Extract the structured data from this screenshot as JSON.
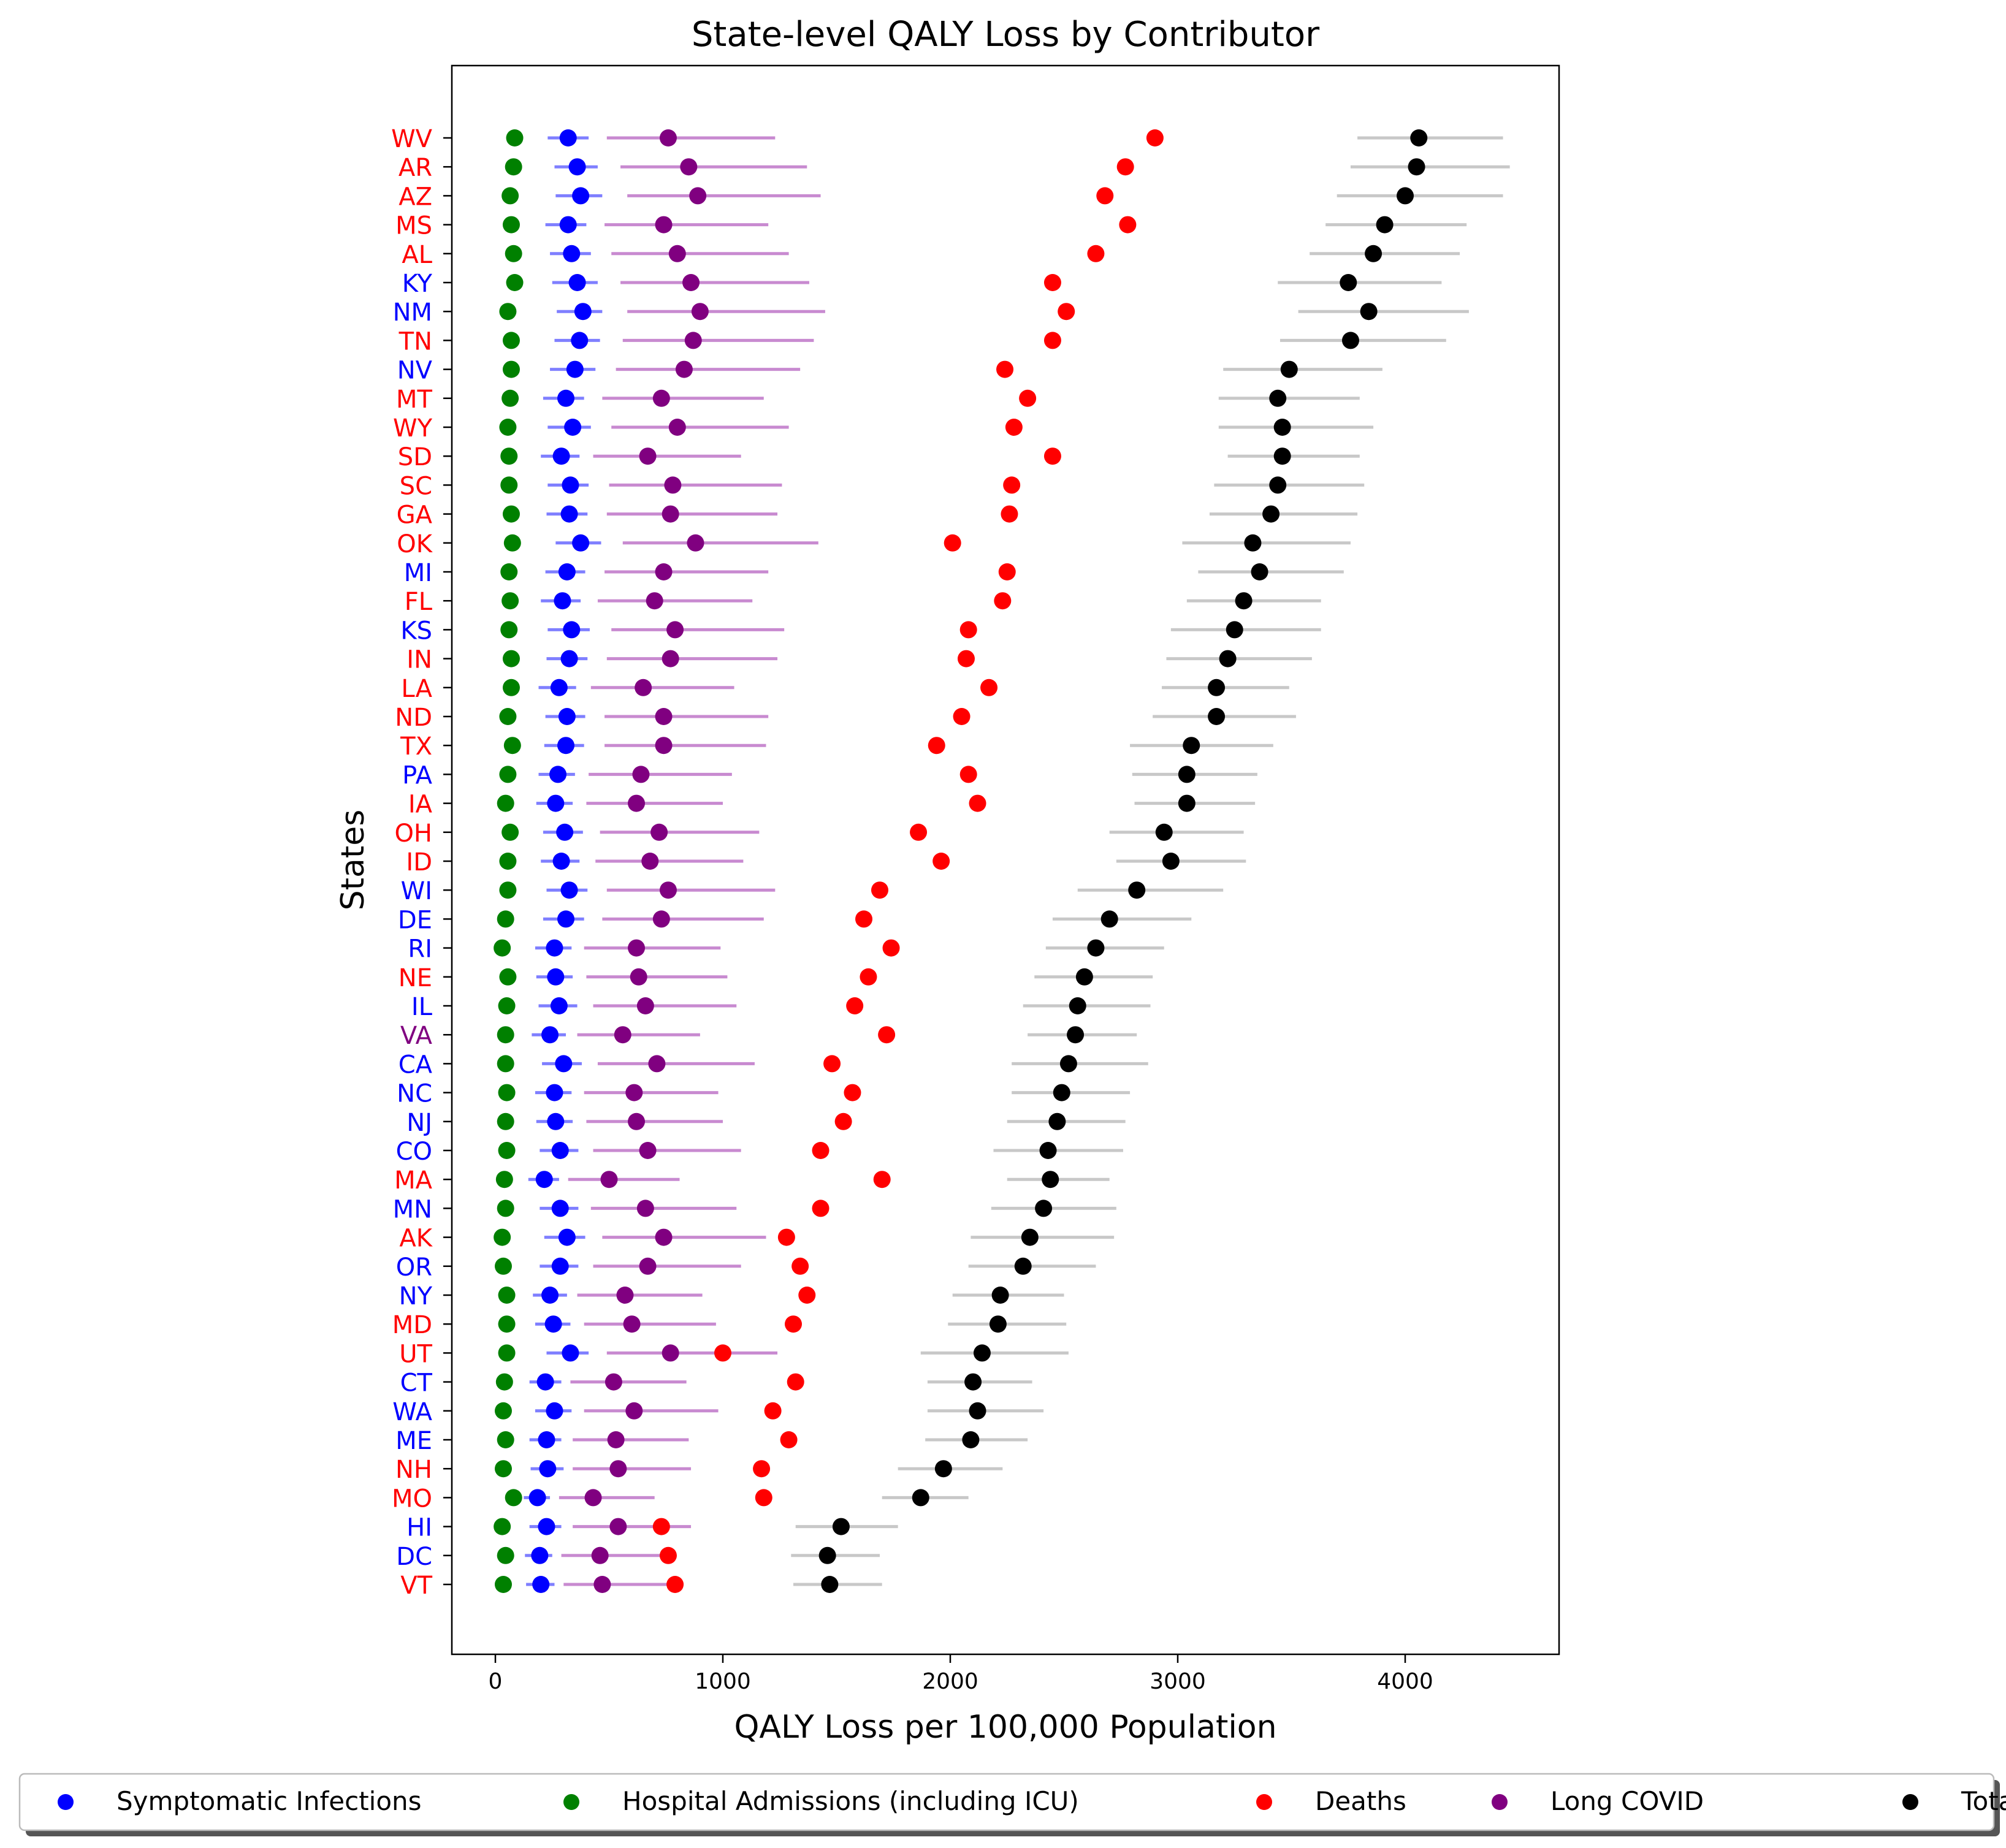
{
  "chart_data": {
    "type": "scatter",
    "title": "State-level QALY Loss by Contributor",
    "xlabel": "QALY Loss per 100,000 Population",
    "ylabel": "States",
    "xlim": [
      -200,
      4700
    ],
    "xticks": [
      0,
      1000,
      2000,
      3000,
      4000
    ],
    "legend_position": "bottom",
    "grid": false,
    "series": [
      {
        "name": "Symptomatic Infections",
        "color": "#0000ff",
        "err_color": "#7f7fff"
      },
      {
        "name": "Hospital Admissions (including ICU)",
        "color": "#008000",
        "err_color": null
      },
      {
        "name": "Deaths",
        "color": "#ff0000",
        "err_color": null
      },
      {
        "name": "Long COVID",
        "color": "#800080",
        "err_color": "#c88ad0"
      },
      {
        "name": "Total",
        "color": "#000000",
        "err_color": "#c8c8c8"
      }
    ],
    "party_colors": {
      "R": "#ff0000",
      "D": "#0000ff",
      "S": "#800080"
    },
    "states": [
      {
        "label": "WV",
        "party": "R",
        "sym": [
          320,
          230,
          410
        ],
        "hosp": 85,
        "deaths": 2900,
        "long": [
          760,
          490,
          1230
        ],
        "total": [
          4060,
          3790,
          4430
        ]
      },
      {
        "label": "AR",
        "party": "R",
        "sym": [
          360,
          260,
          450
        ],
        "hosp": 80,
        "deaths": 2770,
        "long": [
          850,
          550,
          1370
        ],
        "total": [
          4050,
          3760,
          4460
        ]
      },
      {
        "label": "AZ",
        "party": "R",
        "sym": [
          375,
          265,
          470
        ],
        "hosp": 65,
        "deaths": 2680,
        "long": [
          890,
          580,
          1430
        ],
        "total": [
          4000,
          3700,
          4430
        ]
      },
      {
        "label": "MS",
        "party": "R",
        "sym": [
          320,
          220,
          400
        ],
        "hosp": 70,
        "deaths": 2780,
        "long": [
          740,
          480,
          1200
        ],
        "total": [
          3910,
          3650,
          4270
        ]
      },
      {
        "label": "AL",
        "party": "R",
        "sym": [
          335,
          240,
          420
        ],
        "hosp": 80,
        "deaths": 2640,
        "long": [
          800,
          510,
          1290
        ],
        "total": [
          3860,
          3580,
          4240
        ]
      },
      {
        "label": "KY",
        "party": "D",
        "sym": [
          360,
          250,
          450
        ],
        "hosp": 85,
        "deaths": 2450,
        "long": [
          860,
          550,
          1380
        ],
        "total": [
          3750,
          3440,
          4160
        ]
      },
      {
        "label": "NM",
        "party": "D",
        "sym": [
          385,
          270,
          470
        ],
        "hosp": 55,
        "deaths": 2510,
        "long": [
          900,
          580,
          1450
        ],
        "total": [
          3840,
          3530,
          4280
        ]
      },
      {
        "label": "TN",
        "party": "R",
        "sym": [
          370,
          260,
          460
        ],
        "hosp": 70,
        "deaths": 2450,
        "long": [
          870,
          560,
          1400
        ],
        "total": [
          3760,
          3450,
          4180
        ]
      },
      {
        "label": "NV",
        "party": "D",
        "sym": [
          350,
          240,
          440
        ],
        "hosp": 70,
        "deaths": 2240,
        "long": [
          830,
          530,
          1340
        ],
        "total": [
          3490,
          3200,
          3900
        ]
      },
      {
        "label": "MT",
        "party": "R",
        "sym": [
          310,
          210,
          390
        ],
        "hosp": 65,
        "deaths": 2340,
        "long": [
          730,
          470,
          1180
        ],
        "total": [
          3440,
          3180,
          3800
        ]
      },
      {
        "label": "WY",
        "party": "R",
        "sym": [
          340,
          230,
          420
        ],
        "hosp": 55,
        "deaths": 2280,
        "long": [
          800,
          510,
          1290
        ],
        "total": [
          3460,
          3180,
          3860
        ]
      },
      {
        "label": "SD",
        "party": "R",
        "sym": [
          290,
          200,
          370
        ],
        "hosp": 60,
        "deaths": 2450,
        "long": [
          670,
          430,
          1080
        ],
        "total": [
          3460,
          3220,
          3800
        ]
      },
      {
        "label": "SC",
        "party": "R",
        "sym": [
          330,
          230,
          410
        ],
        "hosp": 60,
        "deaths": 2270,
        "long": [
          780,
          500,
          1260
        ],
        "total": [
          3440,
          3160,
          3820
        ]
      },
      {
        "label": "GA",
        "party": "R",
        "sym": [
          325,
          225,
          405
        ],
        "hosp": 70,
        "deaths": 2260,
        "long": [
          770,
          490,
          1240
        ],
        "total": [
          3410,
          3140,
          3790
        ]
      },
      {
        "label": "OK",
        "party": "R",
        "sym": [
          375,
          265,
          465
        ],
        "hosp": 75,
        "deaths": 2010,
        "long": [
          880,
          560,
          1420
        ],
        "total": [
          3330,
          3020,
          3760
        ]
      },
      {
        "label": "MI",
        "party": "D",
        "sym": [
          315,
          220,
          395
        ],
        "hosp": 60,
        "deaths": 2250,
        "long": [
          740,
          480,
          1200
        ],
        "total": [
          3360,
          3090,
          3730
        ]
      },
      {
        "label": "FL",
        "party": "R",
        "sym": [
          295,
          200,
          375
        ],
        "hosp": 65,
        "deaths": 2230,
        "long": [
          700,
          450,
          1130
        ],
        "total": [
          3290,
          3040,
          3630
        ]
      },
      {
        "label": "KS",
        "party": "D",
        "sym": [
          335,
          230,
          415
        ],
        "hosp": 60,
        "deaths": 2080,
        "long": [
          790,
          510,
          1270
        ],
        "total": [
          3250,
          2970,
          3630
        ]
      },
      {
        "label": "IN",
        "party": "R",
        "sym": [
          325,
          225,
          405
        ],
        "hosp": 70,
        "deaths": 2070,
        "long": [
          770,
          490,
          1240
        ],
        "total": [
          3220,
          2950,
          3590
        ]
      },
      {
        "label": "LA",
        "party": "R",
        "sym": [
          280,
          190,
          355
        ],
        "hosp": 70,
        "deaths": 2170,
        "long": [
          650,
          420,
          1050
        ],
        "total": [
          3170,
          2930,
          3490
        ]
      },
      {
        "label": "ND",
        "party": "R",
        "sym": [
          315,
          220,
          395
        ],
        "hosp": 55,
        "deaths": 2050,
        "long": [
          740,
          480,
          1200
        ],
        "total": [
          3170,
          2890,
          3520
        ]
      },
      {
        "label": "TX",
        "party": "R",
        "sym": [
          310,
          215,
          390
        ],
        "hosp": 75,
        "deaths": 1940,
        "long": [
          740,
          480,
          1190
        ],
        "total": [
          3060,
          2790,
          3420
        ]
      },
      {
        "label": "PA",
        "party": "D",
        "sym": [
          275,
          190,
          350
        ],
        "hosp": 55,
        "deaths": 2080,
        "long": [
          640,
          410,
          1040
        ],
        "total": [
          3040,
          2800,
          3350
        ]
      },
      {
        "label": "IA",
        "party": "R",
        "sym": [
          265,
          180,
          340
        ],
        "hosp": 45,
        "deaths": 2120,
        "long": [
          620,
          400,
          1000
        ],
        "total": [
          3040,
          2810,
          3340
        ]
      },
      {
        "label": "OH",
        "party": "R",
        "sym": [
          305,
          210,
          385
        ],
        "hosp": 65,
        "deaths": 1860,
        "long": [
          720,
          460,
          1160
        ],
        "total": [
          2940,
          2700,
          3290
        ]
      },
      {
        "label": "ID",
        "party": "R",
        "sym": [
          290,
          200,
          370
        ],
        "hosp": 55,
        "deaths": 1960,
        "long": [
          680,
          440,
          1090
        ],
        "total": [
          2970,
          2730,
          3300
        ]
      },
      {
        "label": "WI",
        "party": "D",
        "sym": [
          325,
          225,
          405
        ],
        "hosp": 55,
        "deaths": 1690,
        "long": [
          760,
          490,
          1230
        ],
        "total": [
          2820,
          2560,
          3200
        ]
      },
      {
        "label": "DE",
        "party": "D",
        "sym": [
          310,
          210,
          390
        ],
        "hosp": 45,
        "deaths": 1620,
        "long": [
          730,
          470,
          1180
        ],
        "total": [
          2700,
          2450,
          3060
        ]
      },
      {
        "label": "RI",
        "party": "D",
        "sym": [
          260,
          175,
          335
        ],
        "hosp": 30,
        "deaths": 1740,
        "long": [
          620,
          390,
          990
        ],
        "total": [
          2640,
          2420,
          2940
        ]
      },
      {
        "label": "NE",
        "party": "R",
        "sym": [
          265,
          180,
          340
        ],
        "hosp": 55,
        "deaths": 1640,
        "long": [
          630,
          400,
          1020
        ],
        "total": [
          2590,
          2370,
          2890
        ]
      },
      {
        "label": "IL",
        "party": "D",
        "sym": [
          280,
          190,
          360
        ],
        "hosp": 50,
        "deaths": 1580,
        "long": [
          660,
          430,
          1060
        ],
        "total": [
          2560,
          2320,
          2880
        ]
      },
      {
        "label": "VA",
        "party": "S",
        "sym": [
          240,
          160,
          310
        ],
        "hosp": 45,
        "deaths": 1720,
        "long": [
          560,
          360,
          900
        ],
        "total": [
          2550,
          2340,
          2820
        ]
      },
      {
        "label": "CA",
        "party": "D",
        "sym": [
          300,
          205,
          380
        ],
        "hosp": 45,
        "deaths": 1480,
        "long": [
          710,
          450,
          1140
        ],
        "total": [
          2520,
          2270,
          2870
        ]
      },
      {
        "label": "NC",
        "party": "D",
        "sym": [
          260,
          175,
          335
        ],
        "hosp": 50,
        "deaths": 1570,
        "long": [
          610,
          390,
          980
        ],
        "total": [
          2490,
          2270,
          2790
        ]
      },
      {
        "label": "NJ",
        "party": "D",
        "sym": [
          265,
          180,
          340
        ],
        "hosp": 45,
        "deaths": 1530,
        "long": [
          620,
          400,
          1000
        ],
        "total": [
          2470,
          2250,
          2770
        ]
      },
      {
        "label": "CO",
        "party": "D",
        "sym": [
          285,
          195,
          365
        ],
        "hosp": 50,
        "deaths": 1430,
        "long": [
          670,
          430,
          1080
        ],
        "total": [
          2430,
          2190,
          2760
        ]
      },
      {
        "label": "MA",
        "party": "R",
        "sym": [
          215,
          145,
          280
        ],
        "hosp": 40,
        "deaths": 1700,
        "long": [
          500,
          320,
          810
        ],
        "total": [
          2440,
          2250,
          2700
        ]
      },
      {
        "label": "MN",
        "party": "D",
        "sym": [
          285,
          195,
          365
        ],
        "hosp": 45,
        "deaths": 1430,
        "long": [
          660,
          420,
          1060
        ],
        "total": [
          2410,
          2180,
          2730
        ]
      },
      {
        "label": "AK",
        "party": "R",
        "sym": [
          315,
          215,
          395
        ],
        "hosp": 30,
        "deaths": 1280,
        "long": [
          740,
          470,
          1190
        ],
        "total": [
          2350,
          2090,
          2720
        ]
      },
      {
        "label": "OR",
        "party": "D",
        "sym": [
          285,
          195,
          365
        ],
        "hosp": 35,
        "deaths": 1340,
        "long": [
          670,
          430,
          1080
        ],
        "total": [
          2320,
          2080,
          2640
        ]
      },
      {
        "label": "NY",
        "party": "D",
        "sym": [
          240,
          165,
          315
        ],
        "hosp": 50,
        "deaths": 1370,
        "long": [
          570,
          360,
          910
        ],
        "total": [
          2220,
          2010,
          2500
        ]
      },
      {
        "label": "MD",
        "party": "R",
        "sym": [
          255,
          175,
          330
        ],
        "hosp": 50,
        "deaths": 1310,
        "long": [
          600,
          390,
          970
        ],
        "total": [
          2210,
          1990,
          2510
        ]
      },
      {
        "label": "UT",
        "party": "R",
        "sym": [
          330,
          225,
          410
        ],
        "hosp": 50,
        "deaths": 1000,
        "long": [
          770,
          490,
          1240
        ],
        "total": [
          2140,
          1870,
          2520
        ]
      },
      {
        "label": "CT",
        "party": "D",
        "sym": [
          220,
          150,
          290
        ],
        "hosp": 40,
        "deaths": 1320,
        "long": [
          520,
          330,
          840
        ],
        "total": [
          2100,
          1900,
          2360
        ]
      },
      {
        "label": "WA",
        "party": "D",
        "sym": [
          260,
          175,
          335
        ],
        "hosp": 35,
        "deaths": 1220,
        "long": [
          610,
          390,
          980
        ],
        "total": [
          2120,
          1900,
          2410
        ]
      },
      {
        "label": "ME",
        "party": "D",
        "sym": [
          225,
          150,
          290
        ],
        "hosp": 45,
        "deaths": 1290,
        "long": [
          530,
          340,
          850
        ],
        "total": [
          2090,
          1890,
          2340
        ]
      },
      {
        "label": "NH",
        "party": "R",
        "sym": [
          230,
          155,
          300
        ],
        "hosp": 35,
        "deaths": 1170,
        "long": [
          540,
          340,
          860
        ],
        "total": [
          1970,
          1770,
          2230
        ]
      },
      {
        "label": "MO",
        "party": "R",
        "sym": [
          185,
          125,
          240
        ],
        "hosp": 80,
        "deaths": 1180,
        "long": [
          430,
          280,
          700
        ],
        "total": [
          1870,
          1700,
          2080
        ]
      },
      {
        "label": "HI",
        "party": "D",
        "sym": [
          225,
          150,
          290
        ],
        "hosp": 30,
        "deaths": 730,
        "long": [
          540,
          340,
          860
        ],
        "total": [
          1520,
          1320,
          1770
        ]
      },
      {
        "label": "DC",
        "party": "D",
        "sym": [
          195,
          130,
          250
        ],
        "hosp": 45,
        "deaths": 760,
        "long": [
          460,
          290,
          740
        ],
        "total": [
          1460,
          1300,
          1690
        ]
      },
      {
        "label": "VT",
        "party": "R",
        "sym": [
          200,
          135,
          260
        ],
        "hosp": 35,
        "deaths": 790,
        "long": [
          470,
          300,
          760
        ],
        "total": [
          1470,
          1310,
          1700
        ]
      }
    ]
  }
}
